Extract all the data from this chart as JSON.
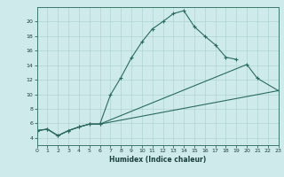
{
  "title": "",
  "xlabel": "Humidex (Indice chaleur)",
  "ylabel": "",
  "background_color": "#ceeaea",
  "grid_color": "#afd4d4",
  "line_color": "#2a6b5e",
  "xlim": [
    0,
    23
  ],
  "ylim": [
    3,
    22
  ],
  "xticks": [
    0,
    1,
    2,
    3,
    4,
    5,
    6,
    7,
    8,
    9,
    10,
    11,
    12,
    13,
    14,
    15,
    16,
    17,
    18,
    19,
    20,
    21,
    22,
    23
  ],
  "yticks": [
    4,
    6,
    8,
    10,
    12,
    14,
    16,
    18,
    20
  ],
  "c1x": [
    0,
    1,
    2,
    3,
    4,
    5,
    6,
    7,
    8,
    9,
    10,
    11,
    12,
    13,
    14,
    15,
    16,
    17,
    18,
    19
  ],
  "c1y": [
    5.0,
    5.2,
    4.3,
    5.0,
    5.5,
    5.9,
    5.9,
    9.9,
    12.3,
    15.0,
    17.2,
    19.0,
    20.0,
    21.1,
    21.5,
    19.3,
    18.0,
    16.8,
    15.1,
    14.8
  ],
  "c2x": [
    0,
    1,
    2,
    3,
    4,
    5,
    6,
    20,
    21,
    23
  ],
  "c2y": [
    5.0,
    5.2,
    4.3,
    5.0,
    5.5,
    5.9,
    5.9,
    14.1,
    12.2,
    10.5
  ],
  "c3x": [
    0,
    1,
    2,
    3,
    4,
    5,
    6,
    23
  ],
  "c3y": [
    5.0,
    5.2,
    4.3,
    5.0,
    5.5,
    5.9,
    5.9,
    10.5
  ],
  "tick_fontsize": 4.5,
  "xlabel_fontsize": 5.5,
  "linewidth": 0.8,
  "marker_size": 2.5
}
